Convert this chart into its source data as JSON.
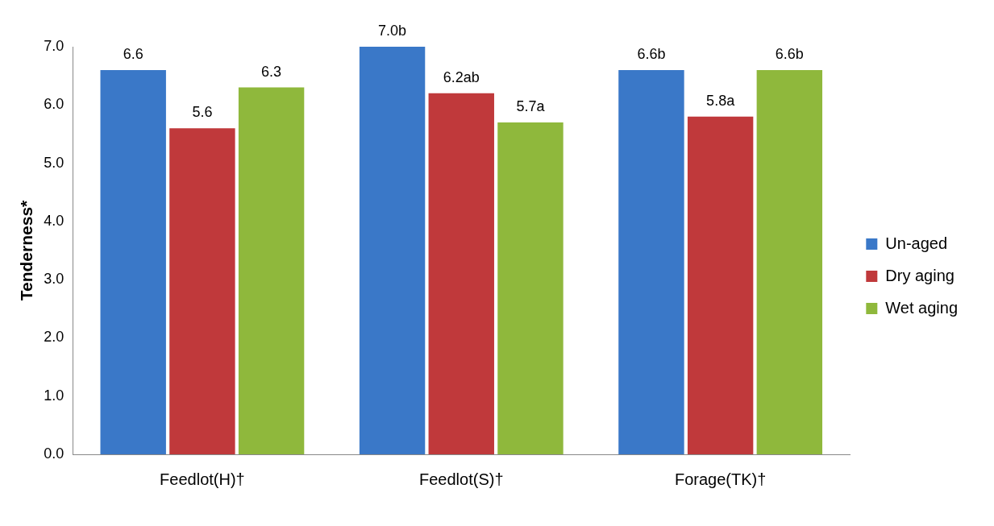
{
  "chart_data": {
    "type": "bar",
    "ylabel": "Tenderness*",
    "categories": [
      "Feedlot(H)†",
      "Feedlot(S)†",
      "Forage(TK)†"
    ],
    "series": [
      {
        "name": "Un-aged",
        "color": "#3a78c8",
        "values": [
          6.6,
          7.0,
          6.6
        ],
        "value_labels": [
          "6.6",
          "7.0b",
          "6.6b"
        ]
      },
      {
        "name": "Dry aging",
        "color": "#c0393b",
        "values": [
          5.6,
          6.2,
          5.8
        ],
        "value_labels": [
          "5.6",
          "6.2ab",
          "5.8a"
        ]
      },
      {
        "name": "Wet aging",
        "color": "#8fb83c",
        "values": [
          6.3,
          5.7,
          6.6
        ],
        "value_labels": [
          "6.3",
          "5.7a",
          "6.6b"
        ]
      }
    ],
    "ylim": [
      0,
      7
    ],
    "yticks": [
      {
        "value": 0,
        "label": "0.0"
      },
      {
        "value": 1,
        "label": "1.0"
      },
      {
        "value": 2,
        "label": "2.0"
      },
      {
        "value": 3,
        "label": "3.0"
      },
      {
        "value": 4,
        "label": "4.0"
      },
      {
        "value": 5,
        "label": "5.0"
      },
      {
        "value": 6,
        "label": "6.0"
      },
      {
        "value": 7,
        "label": "7.0"
      }
    ],
    "grid": false,
    "legend": "right"
  }
}
